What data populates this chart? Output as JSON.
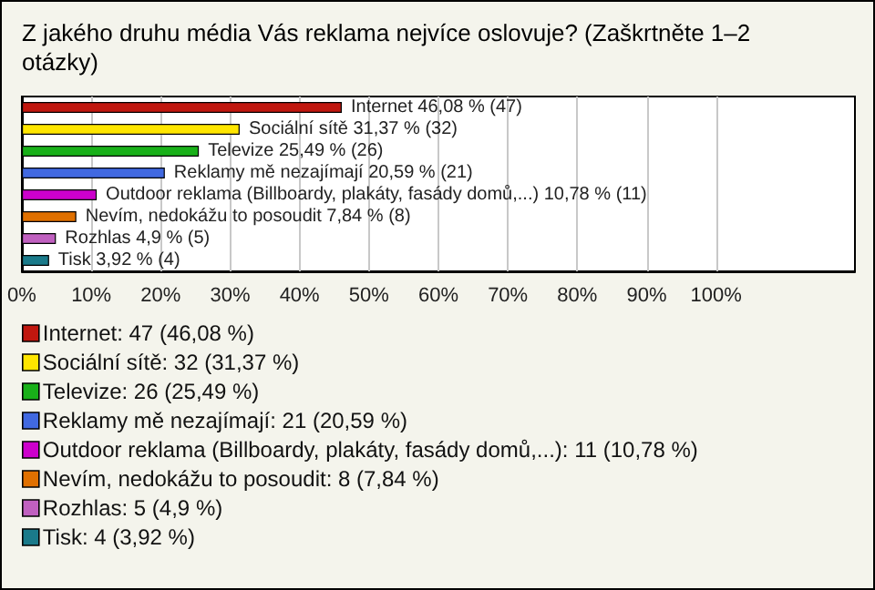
{
  "chart_data": {
    "type": "bar",
    "orientation": "horizontal",
    "title": "Z jakého druhu média Vás reklama nejvíce oslovuje? (Zaškrtněte 1–2 otázky)",
    "categories": [
      null,
      null,
      null,
      null,
      null,
      null,
      null,
      null
    ],
    "series": [
      {
        "name": "Internet: 47 (46,08 %)",
        "color": "#c0170f",
        "values": [
          46.08,
          null,
          null,
          null,
          null,
          null,
          null,
          null
        ],
        "value_labels": [
          "Internet 46,08 % (47)",
          null,
          null,
          null,
          null,
          null,
          null,
          null
        ]
      },
      {
        "name": "Sociální sítě: 32 (31,37 %)",
        "color": "#ffe600",
        "values": [
          null,
          31.37,
          null,
          null,
          null,
          null,
          null,
          null
        ],
        "value_labels": [
          null,
          "Sociální sítě 31,37 % (32)",
          null,
          null,
          null,
          null,
          null,
          null
        ]
      },
      {
        "name": "Televize: 26 (25,49 %)",
        "color": "#19b019",
        "values": [
          null,
          null,
          25.49,
          null,
          null,
          null,
          null,
          null
        ],
        "value_labels": [
          null,
          null,
          "Televize 25,49 % (26)",
          null,
          null,
          null,
          null,
          null
        ]
      },
      {
        "name": "Reklamy mě nezajímají: 21 (20,59 %)",
        "color": "#4169e1",
        "values": [
          null,
          null,
          null,
          20.59,
          null,
          null,
          null,
          null
        ],
        "value_labels": [
          null,
          null,
          null,
          "Reklamy mě nezajímají 20,59 % (21)",
          null,
          null,
          null,
          null
        ]
      },
      {
        "name": "Outdoor reklama (Billboardy, plakáty, fasády domů,...): 11 (10,78 %)",
        "color": "#cc00cc",
        "values": [
          null,
          null,
          null,
          null,
          10.78,
          null,
          null,
          null
        ],
        "value_labels": [
          null,
          null,
          null,
          null,
          "Outdoor reklama (Billboardy, plakáty, fasády domů,...) 10,78 % (11)",
          null,
          null,
          null
        ]
      },
      {
        "name": "Nevím, nedokážu to posoudit: 8 (7,84 %)",
        "color": "#e07000",
        "values": [
          null,
          null,
          null,
          null,
          null,
          7.84,
          null,
          null
        ],
        "value_labels": [
          null,
          null,
          null,
          null,
          null,
          "Nevím, nedokážu to posoudit 7,84 % (8)",
          null,
          null
        ]
      },
      {
        "name": "Rozhlas: 5 (4,9 %)",
        "color": "#c060c0",
        "values": [
          null,
          null,
          null,
          null,
          null,
          null,
          4.9,
          null
        ],
        "value_labels": [
          null,
          null,
          null,
          null,
          null,
          null,
          "Rozhlas 4,9 % (5)",
          null
        ]
      },
      {
        "name": "Tisk: 4 (3,92 %)",
        "color": "#1a7a8a",
        "values": [
          null,
          null,
          null,
          null,
          null,
          null,
          null,
          3.92
        ],
        "value_labels": [
          null,
          null,
          null,
          null,
          null,
          null,
          null,
          "Tisk 3,92 % (4)"
        ]
      }
    ],
    "xlim": [
      0,
      120
    ],
    "xticks": [
      {
        "value": 0,
        "label": "0%"
      },
      {
        "value": 10,
        "label": "10%"
      },
      {
        "value": 20,
        "label": "20%"
      },
      {
        "value": 30,
        "label": "30%"
      },
      {
        "value": 40,
        "label": "40%"
      },
      {
        "value": 50,
        "label": "50%"
      },
      {
        "value": 60,
        "label": "60%"
      },
      {
        "value": 70,
        "label": "70%"
      },
      {
        "value": 80,
        "label": "80%"
      },
      {
        "value": 90,
        "label": "90%"
      },
      {
        "value": 100,
        "label": "100%"
      }
    ],
    "grid": "x",
    "legend": "bottom"
  }
}
